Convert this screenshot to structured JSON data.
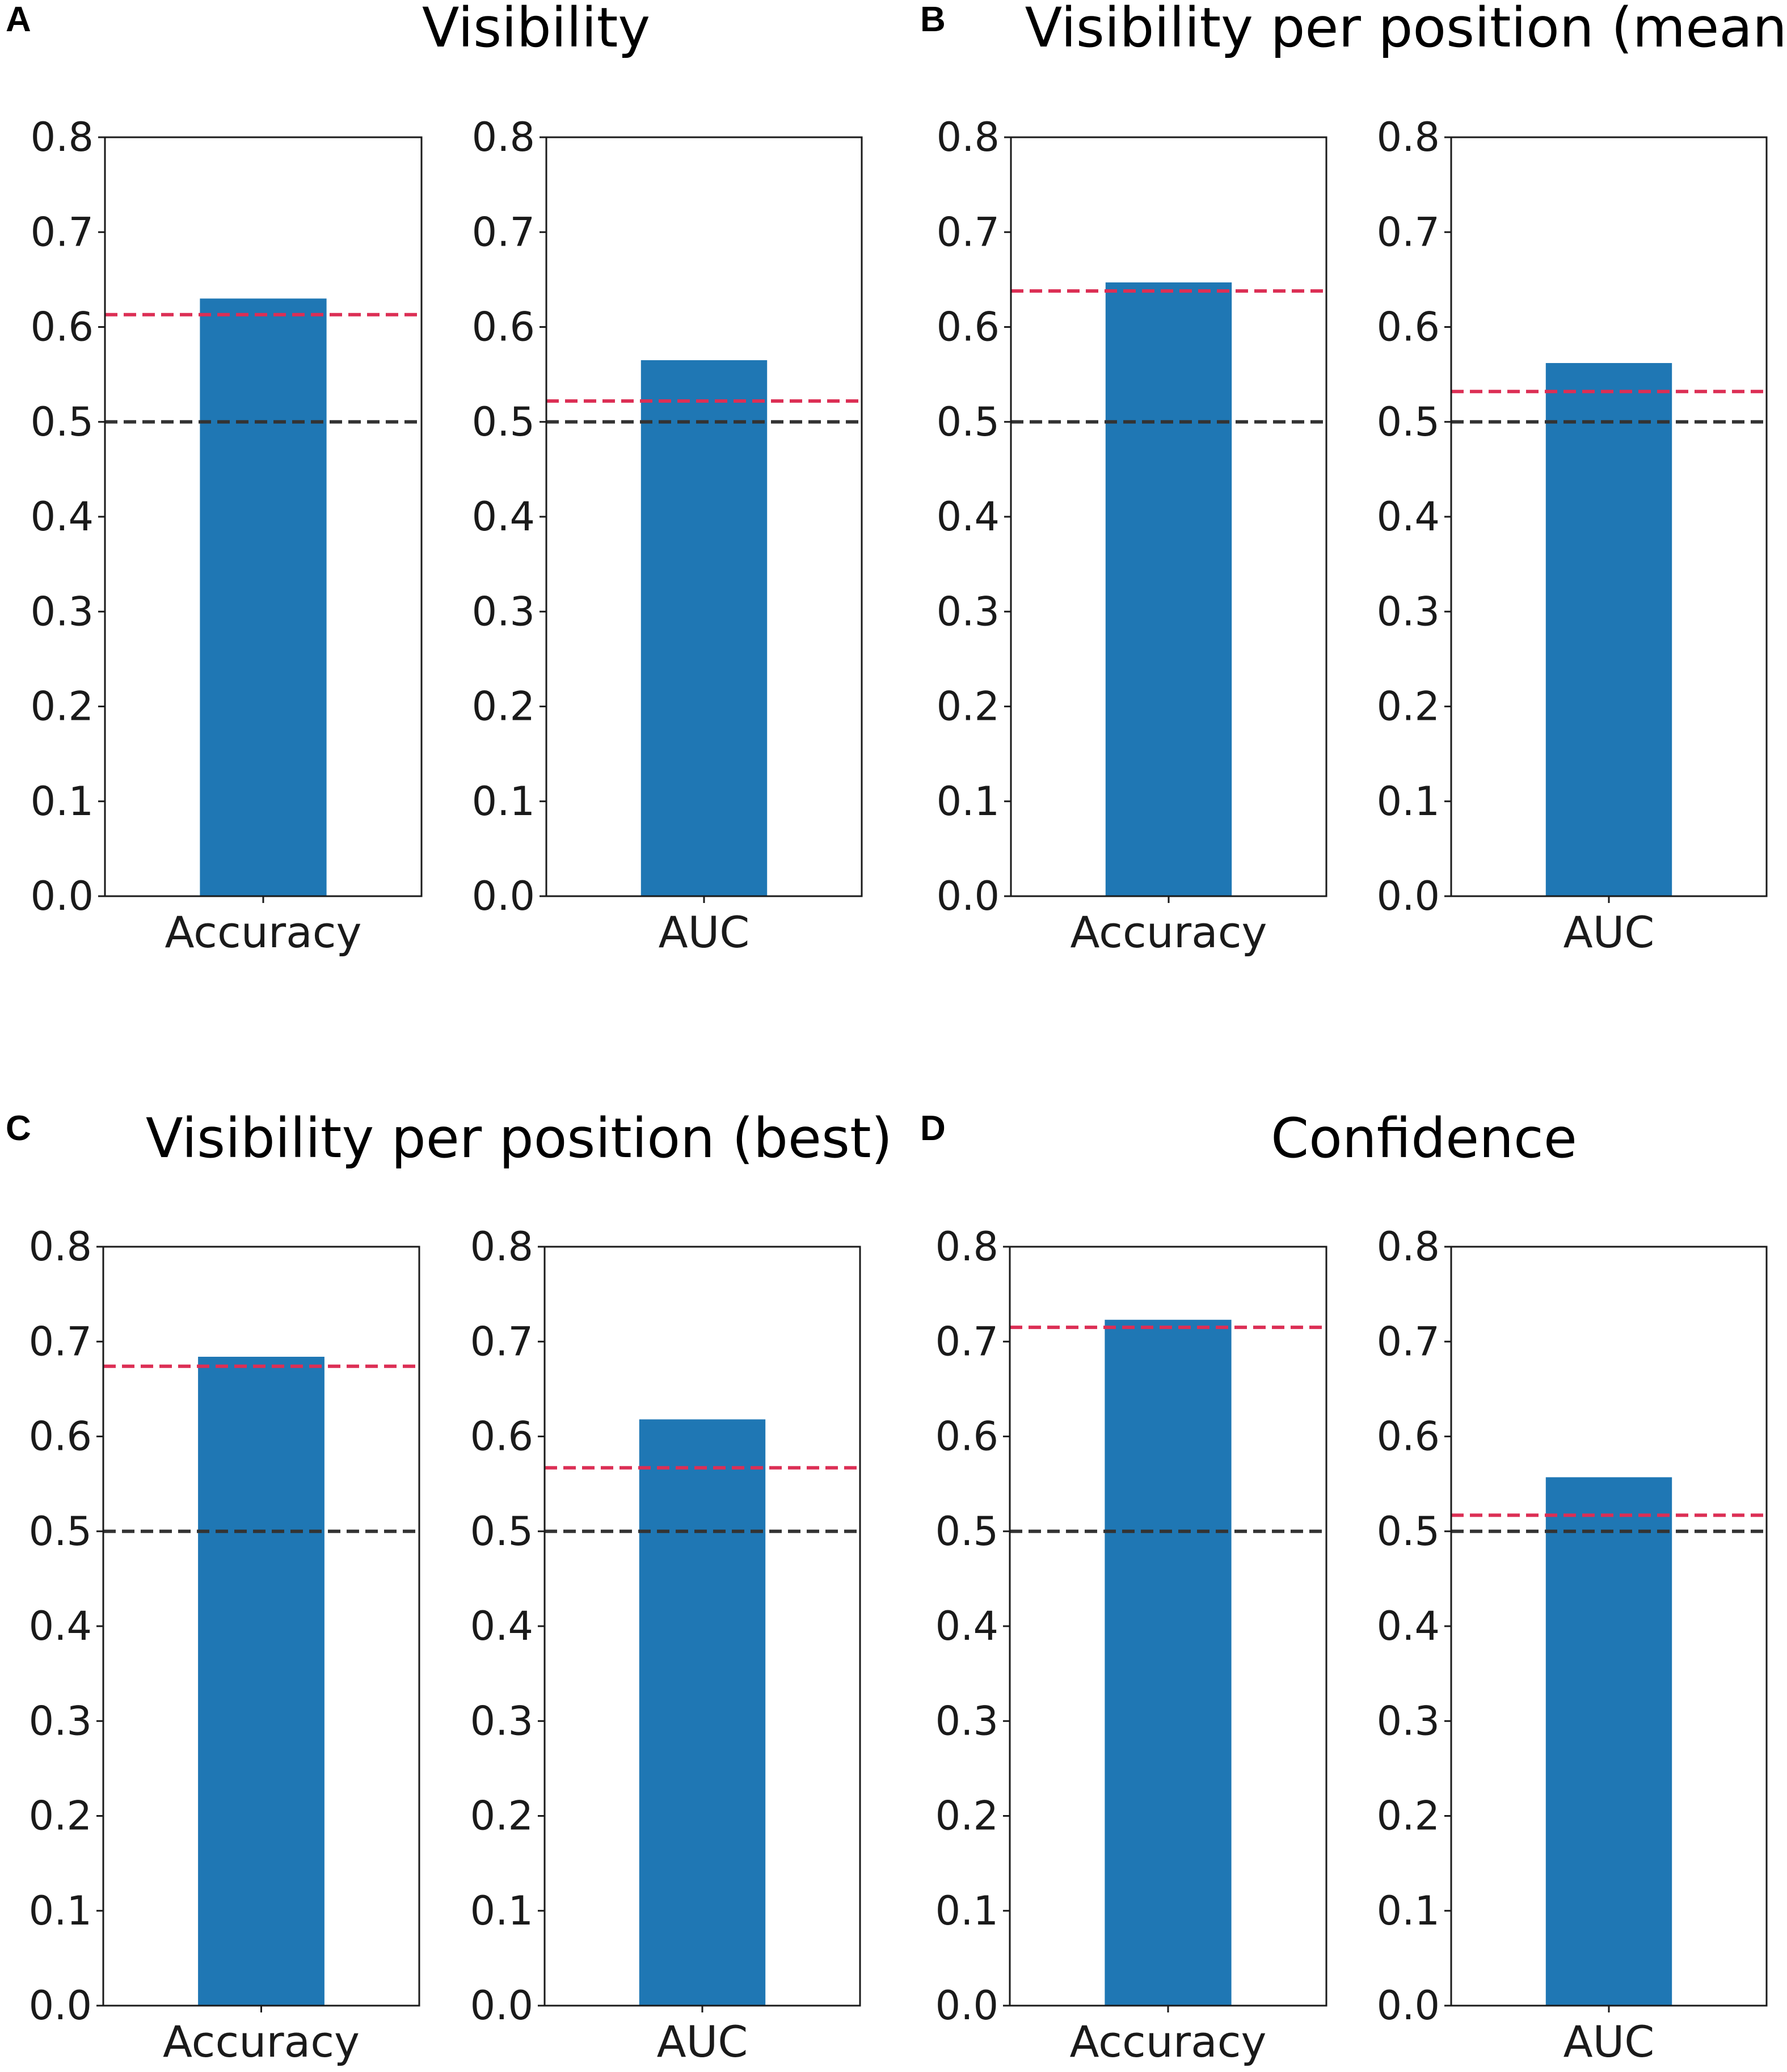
{
  "colors": {
    "bar": "#1f77b4",
    "chance_line": "#333333",
    "threshold_line": "#dc2f55",
    "axes": "#1a1a1a"
  },
  "chart_data": [
    {
      "type": "bar",
      "panel": "A",
      "title": "Visibility",
      "subplots": [
        {
          "categories": [
            "Accuracy"
          ],
          "values": [
            0.63
          ],
          "ylim": [
            0.0,
            0.8
          ],
          "yticks": [
            "0.0",
            "0.1",
            "0.2",
            "0.3",
            "0.4",
            "0.5",
            "0.6",
            "0.7",
            "0.8"
          ],
          "chance_line": 0.5,
          "threshold_line": 0.613
        },
        {
          "categories": [
            "AUC"
          ],
          "values": [
            0.565
          ],
          "ylim": [
            0.0,
            0.8
          ],
          "yticks": [
            "0.0",
            "0.1",
            "0.2",
            "0.3",
            "0.4",
            "0.5",
            "0.6",
            "0.7",
            "0.8"
          ],
          "chance_line": 0.5,
          "threshold_line": 0.522
        }
      ]
    },
    {
      "type": "bar",
      "panel": "B",
      "title": "Visibility per position (mean)",
      "subplots": [
        {
          "categories": [
            "Accuracy"
          ],
          "values": [
            0.647
          ],
          "ylim": [
            0.0,
            0.8
          ],
          "yticks": [
            "0.0",
            "0.1",
            "0.2",
            "0.3",
            "0.4",
            "0.5",
            "0.6",
            "0.7",
            "0.8"
          ],
          "chance_line": 0.5,
          "threshold_line": 0.638
        },
        {
          "categories": [
            "AUC"
          ],
          "values": [
            0.562
          ],
          "ylim": [
            0.0,
            0.8
          ],
          "yticks": [
            "0.0",
            "0.1",
            "0.2",
            "0.3",
            "0.4",
            "0.5",
            "0.6",
            "0.7",
            "0.8"
          ],
          "chance_line": 0.5,
          "threshold_line": 0.532
        }
      ]
    },
    {
      "type": "bar",
      "panel": "C",
      "title": "Visibility per position (best)",
      "subplots": [
        {
          "categories": [
            "Accuracy"
          ],
          "values": [
            0.684
          ],
          "ylim": [
            0.0,
            0.8
          ],
          "yticks": [
            "0.0",
            "0.1",
            "0.2",
            "0.3",
            "0.4",
            "0.5",
            "0.6",
            "0.7",
            "0.8"
          ],
          "chance_line": 0.5,
          "threshold_line": 0.674
        },
        {
          "categories": [
            "AUC"
          ],
          "values": [
            0.618
          ],
          "ylim": [
            0.0,
            0.8
          ],
          "yticks": [
            "0.0",
            "0.1",
            "0.2",
            "0.3",
            "0.4",
            "0.5",
            "0.6",
            "0.7",
            "0.8"
          ],
          "chance_line": 0.5,
          "threshold_line": 0.567
        }
      ]
    },
    {
      "type": "bar",
      "panel": "D",
      "title": "Confidence",
      "subplots": [
        {
          "categories": [
            "Accuracy"
          ],
          "values": [
            0.723
          ],
          "ylim": [
            0.0,
            0.8
          ],
          "yticks": [
            "0.0",
            "0.1",
            "0.2",
            "0.3",
            "0.4",
            "0.5",
            "0.6",
            "0.7",
            "0.8"
          ],
          "chance_line": 0.5,
          "threshold_line": 0.715
        },
        {
          "categories": [
            "AUC"
          ],
          "values": [
            0.557
          ],
          "ylim": [
            0.0,
            0.8
          ],
          "yticks": [
            "0.0",
            "0.1",
            "0.2",
            "0.3",
            "0.4",
            "0.5",
            "0.6",
            "0.7",
            "0.8"
          ],
          "chance_line": 0.5,
          "threshold_line": 0.517
        }
      ]
    }
  ]
}
